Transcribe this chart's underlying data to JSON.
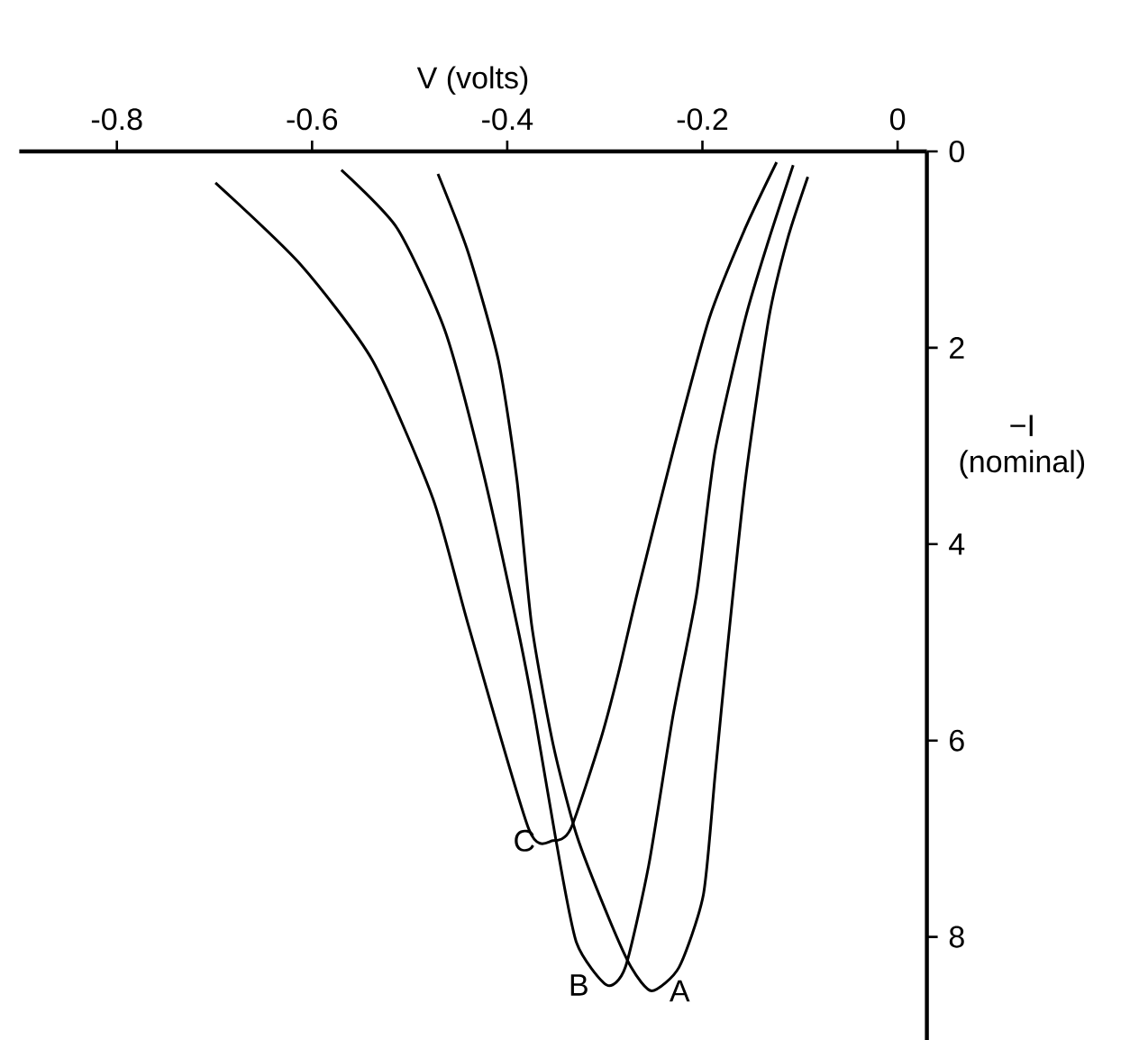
{
  "chart_data": {
    "type": "line",
    "xlabel": "V (volts)",
    "ylabel": "−I (nominal)",
    "xlim": [
      -0.9,
      0.03
    ],
    "ylim": [
      9.05,
      0
    ],
    "xticks": [
      -0.8,
      -0.6,
      -0.4,
      -0.2,
      0
    ],
    "yticks": [
      0,
      2,
      4,
      6,
      8
    ],
    "series": [
      {
        "name": "A",
        "color": "#000000",
        "x": [
          -0.471,
          -0.44,
          -0.409,
          -0.39,
          -0.375,
          -0.353,
          -0.329,
          -0.298,
          -0.273,
          -0.252,
          -0.224,
          -0.199,
          -0.187,
          -0.175,
          -0.156,
          -0.132,
          -0.113,
          -0.092
        ],
        "values": [
          0.23,
          1.03,
          2.13,
          3.35,
          4.82,
          6.04,
          6.96,
          7.76,
          8.31,
          8.55,
          8.31,
          7.57,
          6.35,
          5.12,
          3.35,
          1.7,
          0.9,
          0.26
        ]
      },
      {
        "name": "B",
        "color": "#000000",
        "x": [
          -0.57,
          -0.513,
          -0.464,
          -0.427,
          -0.39,
          -0.372,
          -0.35,
          -0.329,
          -0.298,
          -0.279,
          -0.255,
          -0.23,
          -0.206,
          -0.187,
          -0.156,
          -0.132,
          -0.107
        ],
        "values": [
          0.19,
          0.78,
          1.82,
          3.17,
          4.82,
          5.74,
          7.02,
          8.06,
          8.49,
          8.31,
          7.27,
          5.74,
          4.51,
          3.05,
          1.7,
          0.9,
          0.14
        ]
      },
      {
        "name": "C",
        "color": "#000000",
        "x": [
          -0.699,
          -0.612,
          -0.538,
          -0.476,
          -0.44,
          -0.378,
          -0.353,
          -0.335,
          -0.304,
          -0.286,
          -0.267,
          -0.23,
          -0.193,
          -0.156,
          -0.124
        ],
        "values": [
          0.32,
          1.15,
          2.13,
          3.54,
          4.82,
          6.9,
          7.02,
          6.9,
          5.98,
          5.31,
          4.51,
          3.05,
          1.7,
          0.78,
          0.11
        ]
      }
    ]
  }
}
